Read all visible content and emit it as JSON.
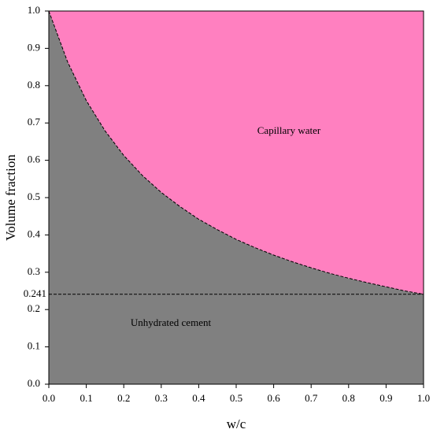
{
  "chart_data": {
    "type": "stacked-area",
    "x_label": "w/c",
    "y_label": "Volume fraction",
    "x": [
      0,
      0.05,
      0.1,
      0.15,
      0.2,
      0.25,
      0.3,
      0.35,
      0.4,
      0.45,
      0.5,
      0.55,
      0.6,
      0.65,
      0.7,
      0.75,
      0.8,
      0.85,
      0.9,
      0.95,
      1.0
    ],
    "series": [
      {
        "name": "Unhydrated cement",
        "color": "#808080",
        "values": [
          1,
          0.864,
          0.76,
          0.679,
          0.613,
          0.559,
          0.514,
          0.476,
          0.442,
          0.414,
          0.388,
          0.366,
          0.346,
          0.328,
          0.312,
          0.297,
          0.284,
          0.272,
          0.261,
          0.25,
          0.241
        ]
      },
      {
        "name": "Capillary water",
        "color": "#ff80c0",
        "values": [
          0,
          0.136,
          0.24,
          0.321,
          0.387,
          0.441,
          0.486,
          0.524,
          0.558,
          0.586,
          0.612,
          0.634,
          0.654,
          0.672,
          0.688,
          0.703,
          0.716,
          0.728,
          0.739,
          0.75,
          0.759
        ]
      }
    ],
    "hline": 0.241,
    "xlim": [
      0,
      1
    ],
    "ylim": [
      0,
      1
    ],
    "xticks": [
      {
        "value": 0,
        "label": "0.0"
      },
      0.1,
      0.2,
      0.3,
      0.4,
      0.5,
      0.6,
      0.7,
      0.8,
      0.9,
      {
        "value": 1,
        "label": "1.0"
      }
    ],
    "yticks": [
      {
        "value": 0,
        "label": "0.0"
      },
      0.1,
      0.2,
      0.3,
      0.4,
      0.5,
      0.6,
      0.7,
      0.8,
      0.9,
      {
        "value": 1,
        "label": "1.0"
      }
    ]
  }
}
